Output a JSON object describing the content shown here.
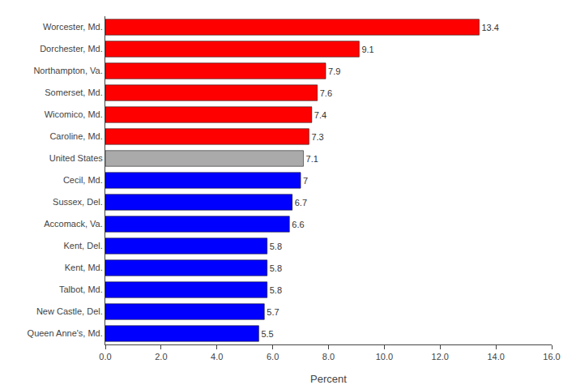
{
  "chart_data": {
    "type": "bar",
    "orientation": "horizontal",
    "categories": [
      "Queen Anne's, Md.",
      "New Castle, Del.",
      "Talbot, Md.",
      "Kent, Md.",
      "Kent, Del.",
      "Accomack, Va.",
      "Sussex, Del.",
      "Cecil, Md.",
      "United States",
      "Caroline, Md.",
      "Wicomico, Md.",
      "Somerset, Md.",
      "Northampton, Va.",
      "Dorchester, Md.",
      "Worcester, Md."
    ],
    "values": [
      5.5,
      5.7,
      5.8,
      5.8,
      5.8,
      6.6,
      6.7,
      7.0,
      7.1,
      7.3,
      7.4,
      7.6,
      7.9,
      9.1,
      13.4
    ],
    "colors": [
      "#0000ff",
      "#0000ff",
      "#0000ff",
      "#0000ff",
      "#0000ff",
      "#0000ff",
      "#0000ff",
      "#0000ff",
      "#aaaaaa",
      "#ff0000",
      "#ff0000",
      "#ff0000",
      "#ff0000",
      "#ff0000",
      "#ff0000"
    ],
    "xlabel": "Percent",
    "xlim": [
      0.0,
      16.0
    ],
    "xticks": [
      {
        "value": 0,
        "label": "0.0"
      },
      {
        "value": 2,
        "label": "2.0"
      },
      {
        "value": 4,
        "label": "4.0"
      },
      {
        "value": 6,
        "label": "6.0"
      },
      {
        "value": 8,
        "label": "8.0"
      },
      {
        "value": 10,
        "label": "10.0"
      },
      {
        "value": 12,
        "label": "12.0"
      },
      {
        "value": 14,
        "label": "14.0"
      },
      {
        "value": 16,
        "label": "16.0"
      }
    ],
    "data_labels": true,
    "grid": false
  }
}
